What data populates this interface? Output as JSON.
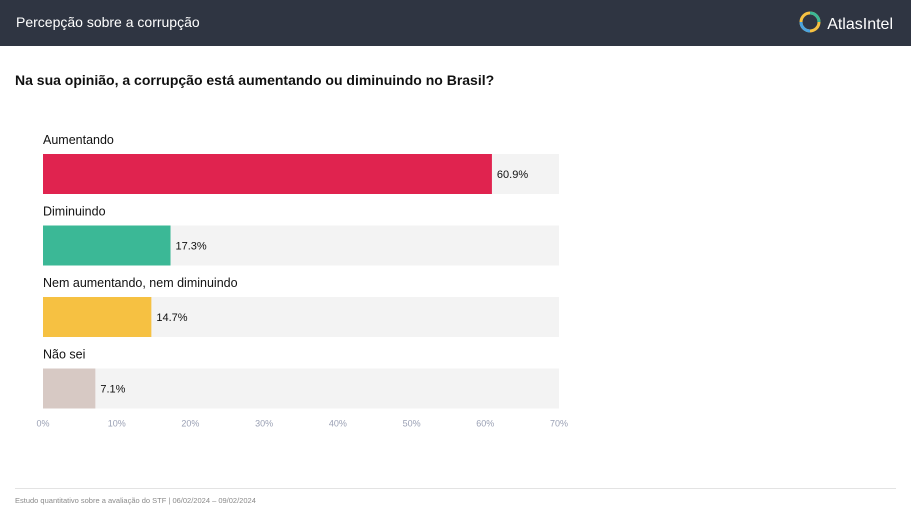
{
  "header": {
    "title": "Percepção sobre a corrupção",
    "brand_name": "AtlasIntel",
    "brand_icon": "atlasintel-logo-icon"
  },
  "question": "Na sua opinião, a corrupção está aumentando ou diminuindo no Brasil?",
  "footer": "Estudo quantitativo sobre a avaliação do STF | 06/02/2024 – 09/02/2024",
  "chart_data": {
    "type": "bar",
    "orientation": "horizontal",
    "categories": [
      "Aumentando",
      "Diminuindo",
      "Nem aumentando, nem diminuindo",
      "Não sei"
    ],
    "values": [
      60.9,
      17.3,
      14.7,
      7.1
    ],
    "value_labels": [
      "60.9%",
      "17.3%",
      "14.7%",
      "7.1%"
    ],
    "colors": [
      "#e0234f",
      "#3bb896",
      "#f6c142",
      "#d7c9c4"
    ],
    "track_color": "#f3f3f3",
    "xlim": [
      0,
      70
    ],
    "xticks": [
      "0%",
      "10%",
      "20%",
      "30%",
      "40%",
      "50%",
      "60%",
      "70%"
    ],
    "grid": false,
    "legend": "none"
  }
}
